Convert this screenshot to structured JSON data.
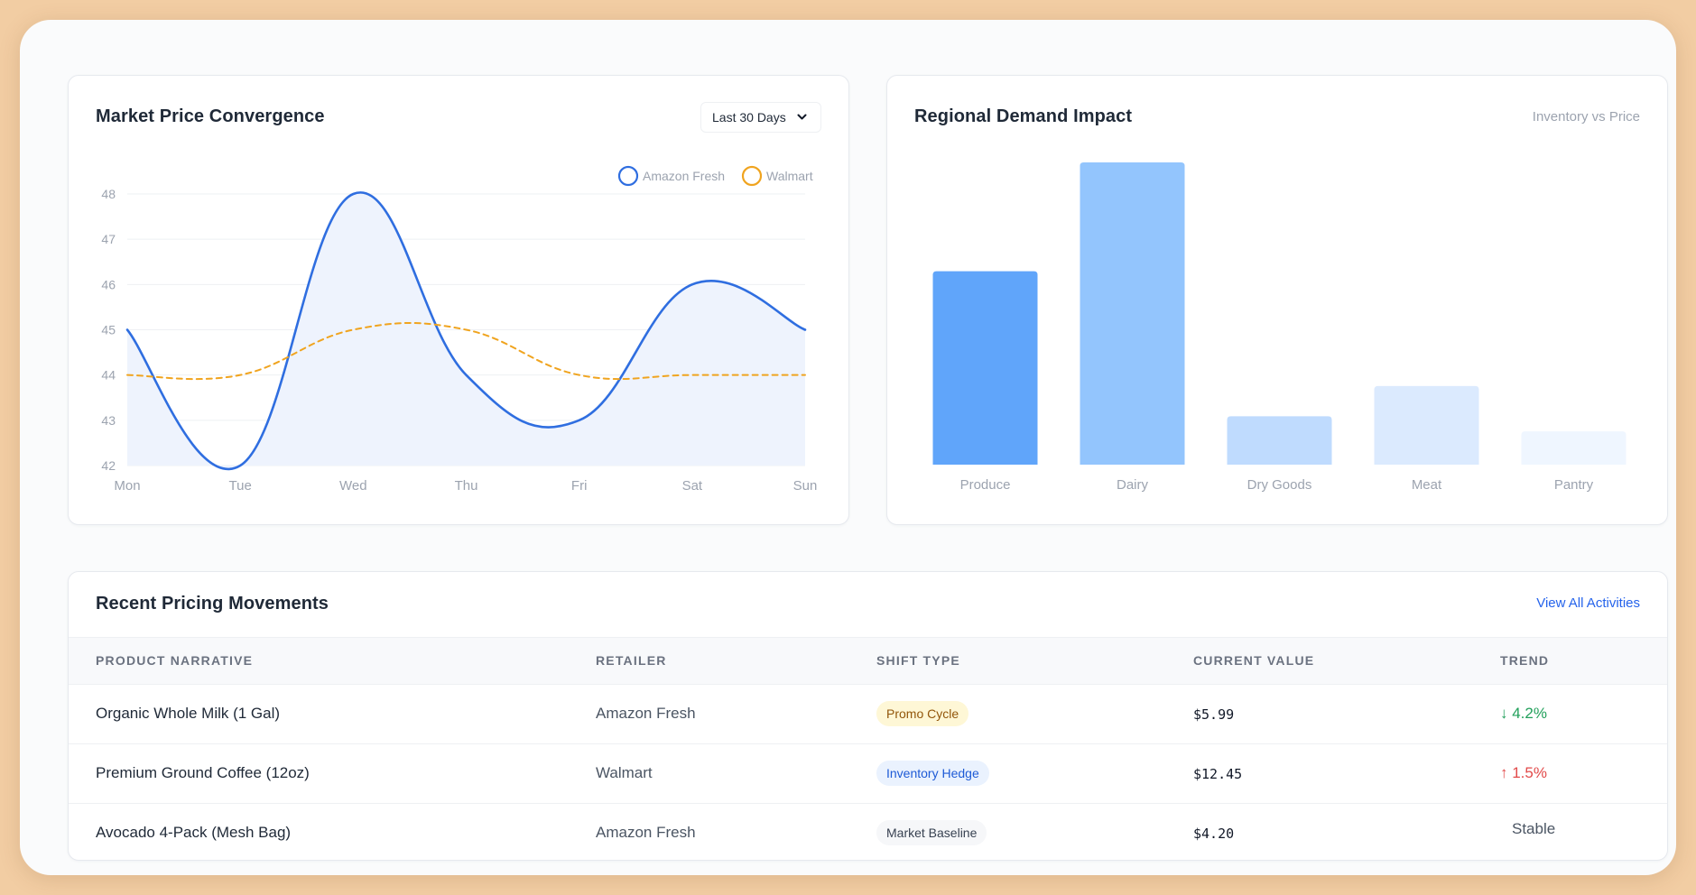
{
  "price_card": {
    "title": "Market Price Convergence",
    "range": "Last 30 Days",
    "chart_data": {
      "type": "line",
      "categories": [
        "Mon",
        "Tue",
        "Wed",
        "Thu",
        "Fri",
        "Sat",
        "Sun"
      ],
      "ylim": [
        42,
        48
      ],
      "yticks": [
        42,
        43,
        44,
        45,
        46,
        47,
        48
      ],
      "grid": true,
      "legend_position": "top-right",
      "series": [
        {
          "name": "Amazon Fresh",
          "color": "#2f6ee0",
          "values": [
            45,
            42,
            48,
            44,
            43,
            46,
            45
          ],
          "fill": "#eef3fd",
          "style": "solid"
        },
        {
          "name": "Walmart",
          "color": "#f0a41f",
          "values": [
            44,
            44,
            45,
            45,
            44,
            44,
            44
          ],
          "style": "dashed"
        }
      ]
    }
  },
  "demand_card": {
    "title": "Regional Demand Impact",
    "subtitle": "Inventory vs Price",
    "chart_data": {
      "type": "bar",
      "categories": [
        "Produce",
        "Dairy",
        "Dry Goods",
        "Meat",
        "Pantry"
      ],
      "values": [
        64,
        100,
        16,
        26,
        11
      ],
      "ylim": [
        0,
        100
      ],
      "grid": false,
      "colors": [
        "#60a5fa",
        "#93c5fd",
        "#bfdbfe",
        "#dbeafe",
        "#eff6ff"
      ]
    }
  },
  "table_card": {
    "title": "Recent Pricing Movements",
    "view_all": "View All Activities",
    "columns": [
      "PRODUCT NARRATIVE",
      "RETAILER",
      "SHIFT TYPE",
      "CURRENT VALUE",
      "TREND"
    ],
    "rows": [
      {
        "product": "Organic Whole Milk (1 Gal)",
        "retailer": "Amazon Fresh",
        "shift": "Promo Cycle",
        "shift_bg": "#fef7d6",
        "shift_fg": "#92560a",
        "value": "$5.99",
        "trend": "↓ 4.2%",
        "trend_color": "#22a05b"
      },
      {
        "product": "Premium Ground Coffee (12oz)",
        "retailer": "Walmart",
        "shift": "Inventory Hedge",
        "shift_bg": "#eaf2fe",
        "shift_fg": "#1e5bd6",
        "value": "$12.45",
        "trend": "↑ 1.5%",
        "trend_color": "#e24a4a"
      },
      {
        "product": "Avocado 4-Pack (Mesh Bag)",
        "retailer": "Amazon Fresh",
        "shift": "Market Baseline",
        "shift_bg": "#f6f7f9",
        "shift_fg": "#374151",
        "value": "$4.20",
        "trend": "Stable",
        "trend_color": "#4b5563"
      }
    ]
  }
}
